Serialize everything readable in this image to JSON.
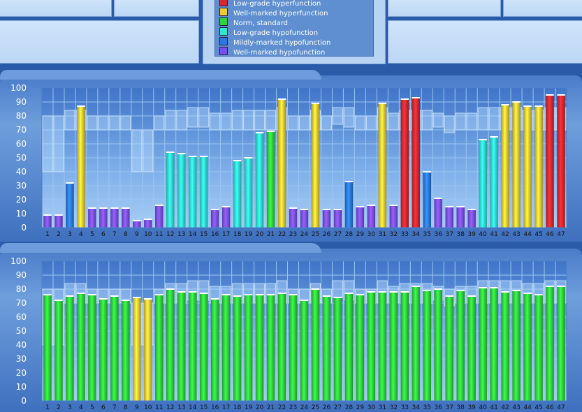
{
  "legend": {
    "items": [
      {
        "label": "Low-grade hyperfunction",
        "color": "#d8282e"
      },
      {
        "label": "Well-marked hyperfunction",
        "color": "#f0c832"
      },
      {
        "label": "Norm, standard",
        "color": "#2ed43a"
      },
      {
        "label": "Low-grade hypofunction",
        "color": "#2ee8d0"
      },
      {
        "label": "Mildly-marked hypofunction",
        "color": "#2a78e0"
      },
      {
        "label": "Well-marked hypofunction",
        "color": "#7a4ef0"
      }
    ]
  },
  "chart_data": [
    {
      "type": "bar",
      "categories": [
        "1",
        "2",
        "3",
        "4",
        "5",
        "6",
        "7",
        "8",
        "9",
        "10",
        "11",
        "12",
        "13",
        "14",
        "15",
        "16",
        "17",
        "18",
        "19",
        "20",
        "21",
        "22",
        "23",
        "24",
        "25",
        "26",
        "27",
        "28",
        "29",
        "30",
        "31",
        "32",
        "33",
        "34",
        "35",
        "36",
        "37",
        "38",
        "39",
        "40",
        "41",
        "42",
        "43",
        "44",
        "45",
        "46",
        "47"
      ],
      "values": [
        9,
        9,
        32,
        87,
        14,
        14,
        14,
        14,
        5,
        6,
        16,
        54,
        53,
        51,
        51,
        13,
        15,
        48,
        50,
        68,
        69,
        92,
        14,
        13,
        89,
        13,
        13,
        33,
        15,
        16,
        89,
        16,
        92,
        93,
        40,
        21,
        15,
        15,
        13,
        63,
        65,
        88,
        90,
        87,
        87,
        95,
        95
      ],
      "status": [
        "well-hypo",
        "well-hypo",
        "mild-hypo",
        "well-hyper",
        "well-hypo",
        "well-hypo",
        "well-hypo",
        "well-hypo",
        "well-hypo",
        "well-hypo",
        "well-hypo",
        "low-hypo",
        "low-hypo",
        "low-hypo",
        "low-hypo",
        "well-hypo",
        "well-hypo",
        "low-hypo",
        "low-hypo",
        "low-hypo",
        "norm",
        "well-hyper",
        "well-hypo",
        "well-hypo",
        "well-hyper",
        "well-hypo",
        "well-hypo",
        "mild-hypo",
        "well-hypo",
        "well-hypo",
        "well-hyper",
        "well-hypo",
        "low-hyper",
        "low-hyper",
        "mild-hypo",
        "well-hypo",
        "well-hypo",
        "well-hypo",
        "well-hypo",
        "low-hypo",
        "low-hypo",
        "well-hyper",
        "well-hyper",
        "well-hyper",
        "well-hyper",
        "low-hyper",
        "low-hyper"
      ],
      "norm_range": [
        [
          40,
          80
        ],
        [
          40,
          80
        ],
        [
          70,
          84
        ],
        [
          70,
          84
        ],
        [
          70,
          80
        ],
        [
          70,
          80
        ],
        [
          70,
          80
        ],
        [
          70,
          80
        ],
        [
          40,
          70
        ],
        [
          40,
          70
        ],
        [
          70,
          80
        ],
        [
          70,
          84
        ],
        [
          70,
          84
        ],
        [
          72,
          86
        ],
        [
          72,
          86
        ],
        [
          70,
          82
        ],
        [
          70,
          82
        ],
        [
          70,
          84
        ],
        [
          70,
          84
        ],
        [
          70,
          84
        ],
        [
          70,
          84
        ],
        [
          70,
          86
        ],
        [
          70,
          80
        ],
        [
          70,
          80
        ],
        [
          70,
          84
        ],
        [
          70,
          80
        ],
        [
          74,
          86
        ],
        [
          72,
          86
        ],
        [
          70,
          80
        ],
        [
          70,
          80
        ],
        [
          70,
          86
        ],
        [
          70,
          82
        ],
        [
          70,
          84
        ],
        [
          70,
          84
        ],
        [
          70,
          84
        ],
        [
          72,
          82
        ],
        [
          68,
          80
        ],
        [
          70,
          82
        ],
        [
          70,
          82
        ],
        [
          70,
          86
        ],
        [
          70,
          86
        ],
        [
          70,
          86
        ],
        [
          70,
          86
        ],
        [
          70,
          84
        ],
        [
          70,
          84
        ],
        [
          70,
          86
        ],
        [
          70,
          86
        ]
      ],
      "ylim": [
        0,
        100
      ],
      "yticks": [
        0,
        10,
        20,
        30,
        40,
        50,
        60,
        70,
        80,
        90,
        100
      ]
    },
    {
      "type": "bar",
      "categories": [
        "1",
        "2",
        "3",
        "4",
        "5",
        "6",
        "7",
        "8",
        "9",
        "10",
        "11",
        "12",
        "13",
        "14",
        "15",
        "16",
        "17",
        "18",
        "19",
        "20",
        "21",
        "22",
        "23",
        "24",
        "25",
        "26",
        "27",
        "28",
        "29",
        "30",
        "31",
        "32",
        "33",
        "34",
        "35",
        "36",
        "37",
        "38",
        "39",
        "40",
        "41",
        "42",
        "43",
        "44",
        "45",
        "46",
        "47"
      ],
      "values": [
        76,
        72,
        75,
        77,
        76,
        73,
        75,
        72,
        74,
        73,
        76,
        80,
        78,
        78,
        77,
        73,
        76,
        75,
        76,
        76,
        76,
        77,
        76,
        72,
        80,
        75,
        74,
        77,
        76,
        78,
        78,
        78,
        78,
        82,
        79,
        80,
        75,
        79,
        75,
        81,
        81,
        78,
        79,
        77,
        76,
        82,
        82
      ],
      "status": [
        "norm",
        "norm",
        "norm",
        "norm",
        "norm",
        "norm",
        "norm",
        "norm",
        "well-hyper",
        "well-hyper",
        "norm",
        "norm",
        "norm",
        "norm",
        "norm",
        "norm",
        "norm",
        "norm",
        "norm",
        "norm",
        "norm",
        "norm",
        "norm",
        "norm",
        "norm",
        "norm",
        "norm",
        "norm",
        "norm",
        "norm",
        "norm",
        "norm",
        "norm",
        "norm",
        "norm",
        "norm",
        "norm",
        "norm",
        "norm",
        "norm",
        "norm",
        "norm",
        "norm",
        "norm",
        "norm",
        "norm",
        "norm"
      ],
      "norm_range": [
        [
          40,
          80
        ],
        [
          40,
          80
        ],
        [
          70,
          84
        ],
        [
          70,
          84
        ],
        [
          70,
          80
        ],
        [
          70,
          80
        ],
        [
          70,
          80
        ],
        [
          70,
          80
        ],
        [
          40,
          70
        ],
        [
          40,
          70
        ],
        [
          70,
          80
        ],
        [
          70,
          84
        ],
        [
          70,
          84
        ],
        [
          72,
          86
        ],
        [
          72,
          86
        ],
        [
          70,
          82
        ],
        [
          70,
          82
        ],
        [
          70,
          84
        ],
        [
          70,
          84
        ],
        [
          70,
          84
        ],
        [
          70,
          84
        ],
        [
          70,
          86
        ],
        [
          70,
          80
        ],
        [
          70,
          80
        ],
        [
          70,
          84
        ],
        [
          70,
          80
        ],
        [
          74,
          86
        ],
        [
          72,
          86
        ],
        [
          70,
          80
        ],
        [
          70,
          80
        ],
        [
          70,
          86
        ],
        [
          70,
          82
        ],
        [
          70,
          84
        ],
        [
          70,
          84
        ],
        [
          70,
          84
        ],
        [
          72,
          82
        ],
        [
          68,
          80
        ],
        [
          70,
          82
        ],
        [
          70,
          82
        ],
        [
          70,
          86
        ],
        [
          70,
          86
        ],
        [
          70,
          86
        ],
        [
          70,
          86
        ],
        [
          70,
          84
        ],
        [
          70,
          84
        ],
        [
          70,
          86
        ],
        [
          70,
          86
        ]
      ],
      "ylim": [
        0,
        100
      ],
      "yticks": [
        0,
        10,
        20,
        30,
        40,
        50,
        60,
        70,
        80,
        90,
        100
      ]
    }
  ],
  "status_colors": {
    "low-hyper": "#d8282e",
    "well-hyper": "#f0c832",
    "norm": "#2ed43a",
    "low-hypo": "#2ee8d0",
    "mild-hypo": "#2a78e0",
    "well-hypo": "#7a4ef0"
  }
}
